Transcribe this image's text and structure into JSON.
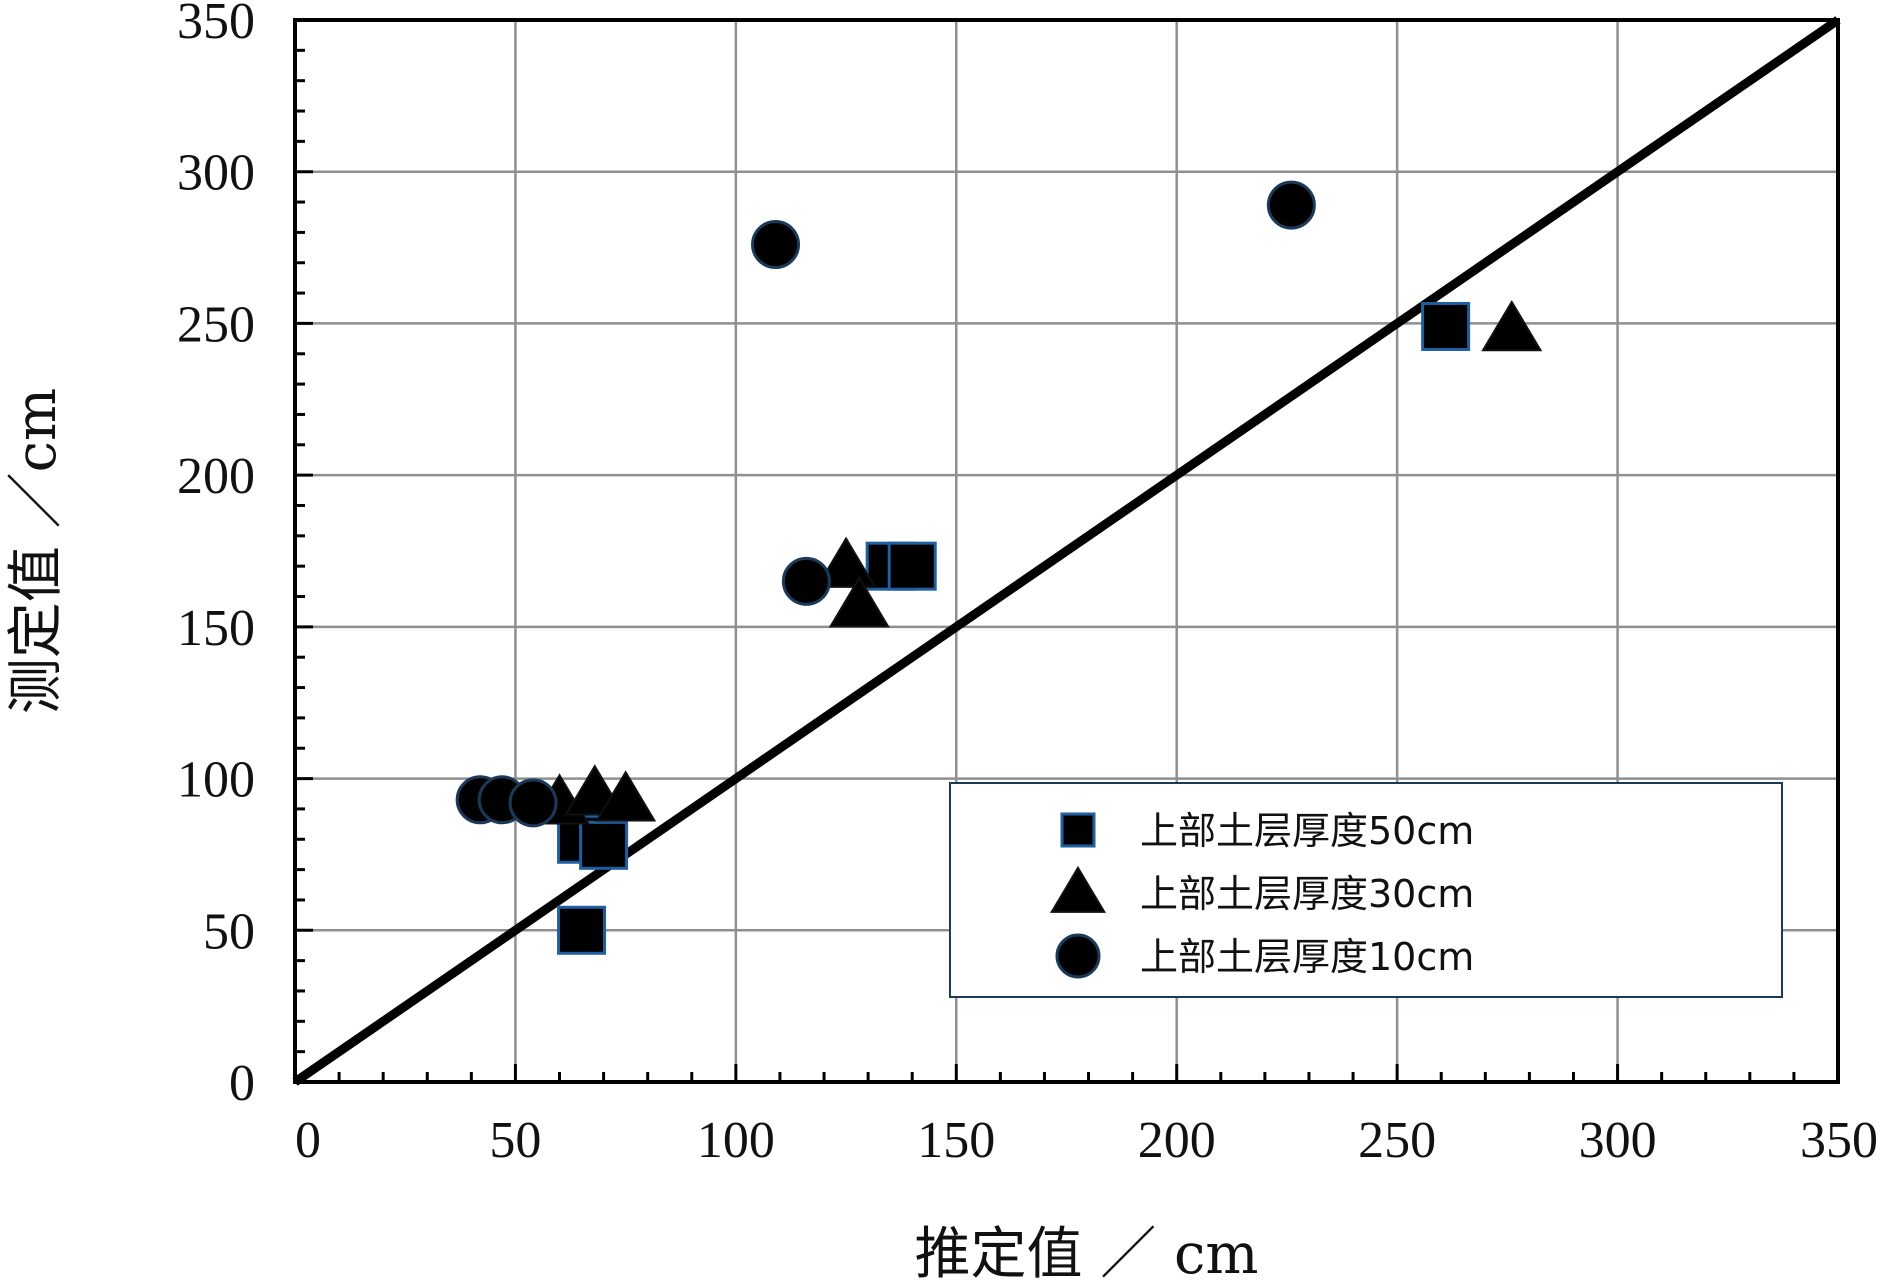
{
  "chart_data": {
    "type": "scatter",
    "xlabel": "推定值 ／ cm",
    "ylabel": "测定值 ／cm",
    "xlim": [
      0,
      350
    ],
    "ylim": [
      0,
      350
    ],
    "xticks": [
      0,
      50,
      100,
      150,
      200,
      250,
      300,
      350
    ],
    "yticks": [
      0,
      50,
      100,
      150,
      200,
      250,
      300,
      350
    ],
    "grid": true,
    "legend_position": "bottom-right",
    "reference_line": {
      "from": [
        0,
        0
      ],
      "to": [
        350,
        350
      ]
    },
    "series": [
      {
        "name": "上部土层厚度50cm",
        "marker": "square",
        "points": [
          [
            65,
            50
          ],
          [
            65,
            80
          ],
          [
            70,
            78
          ],
          [
            135,
            170
          ],
          [
            140,
            170
          ],
          [
            261,
            249
          ]
        ]
      },
      {
        "name": "上部土层厚度30cm",
        "marker": "triangle",
        "points": [
          [
            60,
            92
          ],
          [
            68,
            95
          ],
          [
            75,
            93
          ],
          [
            125,
            170
          ],
          [
            128,
            157
          ],
          [
            276,
            248
          ]
        ]
      },
      {
        "name": "上部土层厚度10cm",
        "marker": "circle",
        "points": [
          [
            42,
            93
          ],
          [
            47,
            93
          ],
          [
            54,
            92
          ],
          [
            109,
            276
          ],
          [
            116,
            165
          ],
          [
            226,
            289
          ]
        ]
      }
    ]
  }
}
